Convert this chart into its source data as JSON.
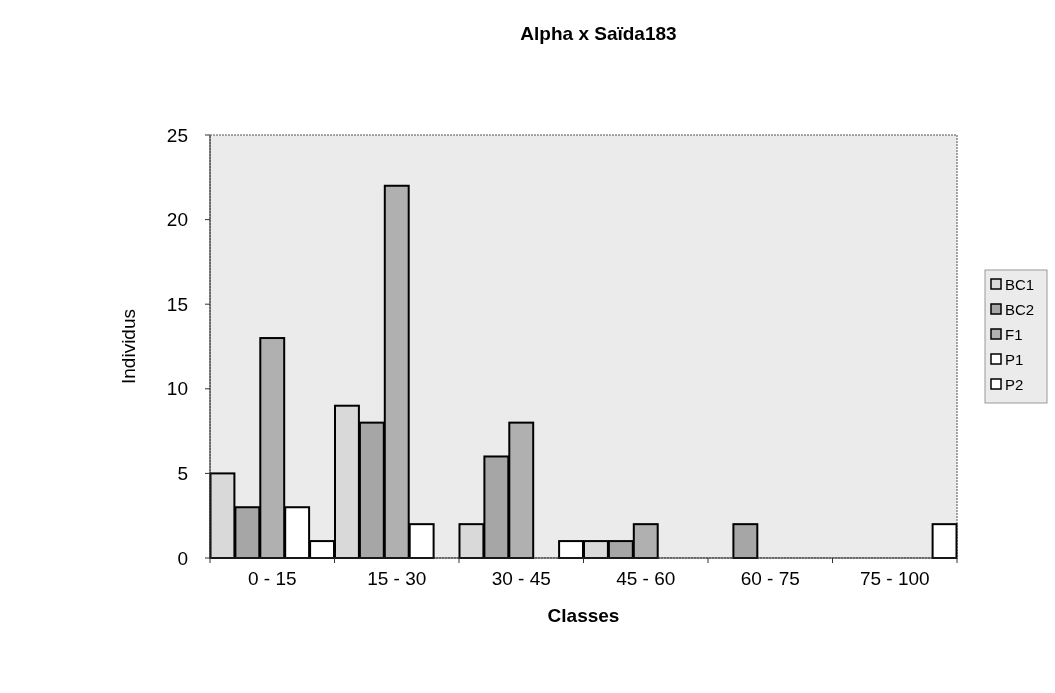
{
  "chart_data": {
    "type": "bar",
    "title": "Alpha x Saïda183",
    "xlabel": "Classes",
    "ylabel": "Individus",
    "categories": [
      "0 - 15",
      "15 - 30",
      "30 - 45",
      "45 - 60",
      "60 - 75",
      "75 - 100"
    ],
    "series": [
      {
        "name": "BC1",
        "color": "#d9d9d9",
        "values": [
          5,
          9,
          2,
          1,
          0,
          null
        ]
      },
      {
        "name": "BC2",
        "color": "#a6a6a6",
        "values": [
          3,
          8,
          6,
          1,
          2,
          null
        ]
      },
      {
        "name": "F1",
        "color": "#b0b0b0",
        "values": [
          13,
          22,
          8,
          2,
          0,
          null
        ]
      },
      {
        "name": "P1",
        "color": "#ffffff",
        "values": [
          3,
          2,
          0,
          0,
          0,
          null
        ]
      },
      {
        "name": "P2",
        "color": "#ffffff",
        "values": [
          1,
          0,
          1,
          0,
          0,
          2
        ]
      }
    ],
    "ylim": [
      0,
      25
    ],
    "yticks": [
      0,
      5,
      10,
      15,
      20,
      25
    ],
    "grid": false,
    "legend": "right"
  }
}
